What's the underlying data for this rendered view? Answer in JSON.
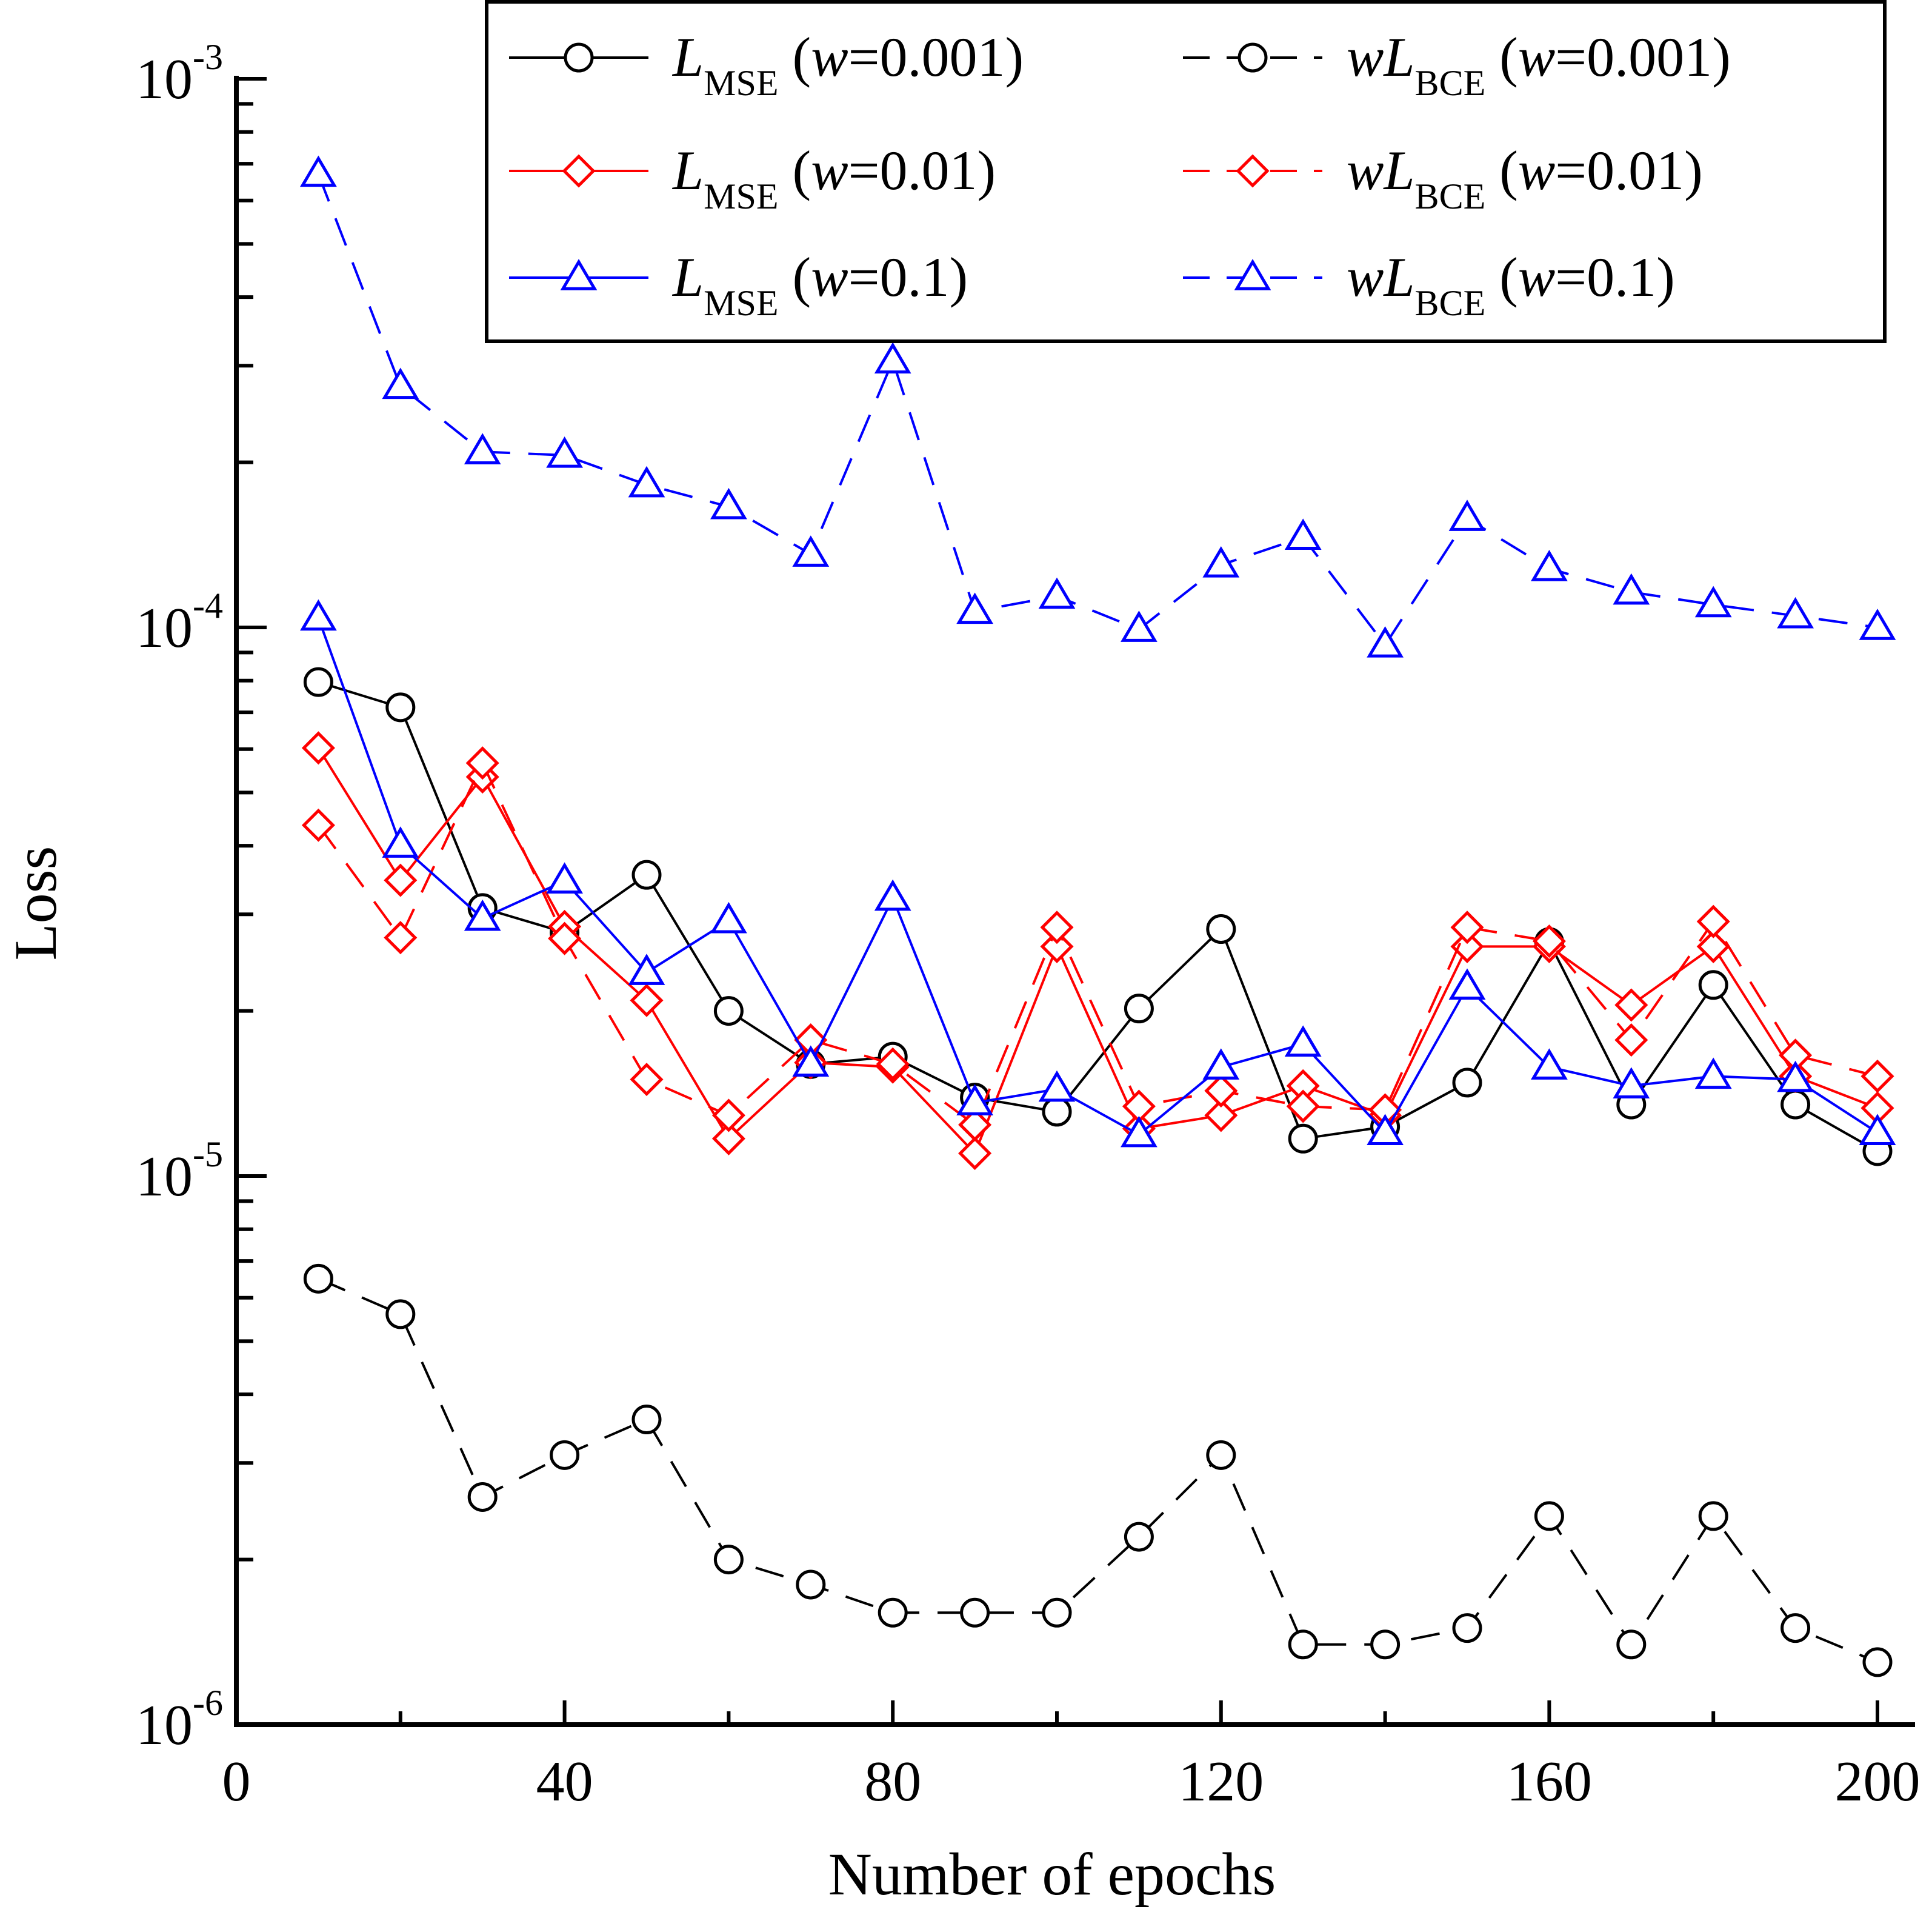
{
  "chart_data": {
    "type": "line",
    "xlabel": "Number of epochs",
    "ylabel": "Loss",
    "xlim": [
      0,
      200
    ],
    "ylim": [
      1e-06,
      0.001
    ],
    "yscale": "log",
    "x_ticks": [
      0,
      40,
      80,
      120,
      160,
      200
    ],
    "x_tick_labels": [
      "0",
      "40",
      "80",
      "120",
      "160",
      "200"
    ],
    "y_ticks": [
      1e-06,
      1e-05,
      0.0001,
      0.001
    ],
    "y_tick_bases": [
      "10",
      "10",
      "10",
      "10"
    ],
    "y_tick_exponents": [
      "-6",
      "-5",
      "-4",
      "-3"
    ],
    "grid": false,
    "legend_position": "top-right",
    "x": [
      10,
      20,
      30,
      40,
      50,
      60,
      70,
      80,
      90,
      100,
      110,
      120,
      130,
      140,
      150,
      160,
      170,
      180,
      190,
      200
    ],
    "series": [
      {
        "name": "L_MSE (w=0.001)",
        "legend": {
          "prefix": "",
          "main": "L",
          "sub": "MSE",
          "weight": "w",
          "value": "=0.001)"
        },
        "color": "#000000",
        "dash": "solid",
        "marker": "circle",
        "values": [
          7.95e-05,
          7.15e-05,
          3.08e-05,
          2.78e-05,
          3.54e-05,
          2e-05,
          1.6e-05,
          1.65e-05,
          1.39e-05,
          1.31e-05,
          2.02e-05,
          2.82e-05,
          1.17e-05,
          1.23e-05,
          1.48e-05,
          2.67e-05,
          1.35e-05,
          2.23e-05,
          1.35e-05,
          1.11e-05
        ]
      },
      {
        "name": "wL_BCE (w=0.001)",
        "legend": {
          "prefix": "w",
          "main": "L",
          "sub": "BCE",
          "weight": "w",
          "value": "=0.001)"
        },
        "color": "#000000",
        "dash": "dashed",
        "marker": "circle",
        "values": [
          6.5e-06,
          5.6e-06,
          2.6e-06,
          3.1e-06,
          3.6e-06,
          2e-06,
          1.8e-06,
          1.6e-06,
          1.6e-06,
          1.6e-06,
          2.2e-06,
          3.1e-06,
          1.4e-06,
          1.4e-06,
          1.5e-06,
          2.4e-06,
          1.4e-06,
          2.4e-06,
          1.5e-06,
          1.3e-06
        ]
      },
      {
        "name": "L_MSE (w=0.01)",
        "legend": {
          "prefix": "",
          "main": "L",
          "sub": "MSE",
          "weight": "w",
          "value": "=0.01)"
        },
        "color": "#ff0000",
        "dash": "solid",
        "marker": "diamond",
        "values": [
          6.03e-05,
          3.46e-05,
          5.34e-05,
          2.85e-05,
          2.09e-05,
          1.17e-05,
          1.61e-05,
          1.58e-05,
          1.1e-05,
          2.62e-05,
          1.22e-05,
          1.29e-05,
          1.46e-05,
          1.29e-05,
          2.62e-05,
          2.62e-05,
          2.05e-05,
          2.62e-05,
          1.52e-05,
          1.33e-05
        ]
      },
      {
        "name": "wL_BCE (w=0.01)",
        "legend": {
          "prefix": "w",
          "main": "L",
          "sub": "BCE",
          "weight": "w",
          "value": "=0.01)"
        },
        "color": "#ff0000",
        "dash": "dashed",
        "marker": "diamond",
        "values": [
          4.36e-05,
          2.72e-05,
          5.66e-05,
          2.71e-05,
          1.5e-05,
          1.29e-05,
          1.77e-05,
          1.6e-05,
          1.24e-05,
          2.84e-05,
          1.34e-05,
          1.43e-05,
          1.34e-05,
          1.32e-05,
          2.84e-05,
          2.68e-05,
          1.77e-05,
          2.91e-05,
          1.66e-05,
          1.52e-05
        ]
      },
      {
        "name": "L_MSE (w=0.1)",
        "legend": {
          "prefix": "",
          "main": "L",
          "sub": "MSE",
          "weight": "w",
          "value": "=0.1)"
        },
        "color": "#0000ff",
        "dash": "solid",
        "marker": "triangle",
        "values": [
          0.000104,
          4.01e-05,
          2.95e-05,
          3.45e-05,
          2.35e-05,
          2.92e-05,
          1.6e-05,
          3.21e-05,
          1.36e-05,
          1.44e-05,
          1.19e-05,
          1.58e-05,
          1.74e-05,
          1.2e-05,
          2.21e-05,
          1.58e-05,
          1.46e-05,
          1.52e-05,
          1.5e-05,
          1.2e-05
        ]
      },
      {
        "name": "wL_BCE (w=0.1)",
        "legend": {
          "prefix": "w",
          "main": "L",
          "sub": "BCE",
          "weight": "w",
          "value": "=0.1)"
        },
        "color": "#0000ff",
        "dash": "dashed",
        "marker": "triangle",
        "values": [
          0.00067,
          0.000275,
          0.000209,
          0.000206,
          0.000182,
          0.000166,
          0.000136,
          0.000306,
          0.000107,
          0.000114,
          9.92e-05,
          0.00013,
          0.000146,
          9.29e-05,
          0.000158,
          0.000128,
          0.000116,
          0.00011,
          0.000105,
          0.0001
        ]
      }
    ]
  }
}
